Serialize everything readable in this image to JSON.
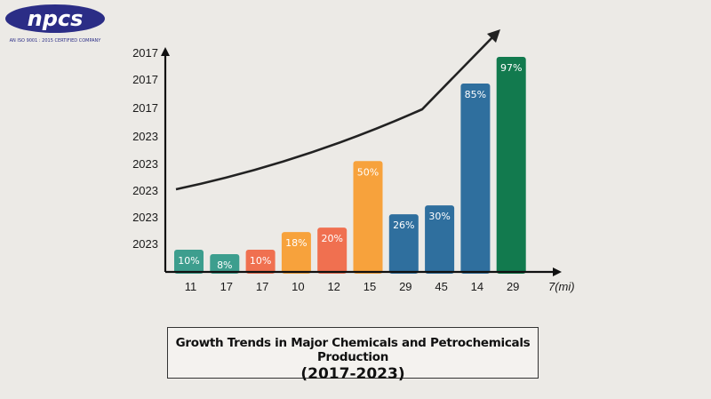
{
  "logo": {
    "brand": "npcs",
    "tagline": "AN ISO 9001 : 2015 CERTIFIED COMPANY",
    "colors": {
      "brand": "#2b2d86",
      "text": "#ffffff"
    }
  },
  "caption": {
    "title_line1": "Growth Trends in Major Chemicals and Petrochemicals Production",
    "title_line2": "(2017-2023)"
  },
  "chart_data": {
    "type": "bar",
    "title": "Growth Trends in Major Chemicals and Petrochemicals Production (2017-2023)",
    "categories": [
      "11",
      "17",
      "17",
      "10",
      "12",
      "15",
      "29",
      "45",
      "14",
      "29"
    ],
    "values": [
      10,
      8,
      10,
      18,
      20,
      50,
      26,
      30,
      85,
      97
    ],
    "data_labels": [
      "10%",
      "8%",
      "10%",
      "18%",
      "20%",
      "50%",
      "26%",
      "30%",
      "85%",
      "97%"
    ],
    "bar_colors": [
      "#3d9e8e",
      "#3d9e8e",
      "#f07050",
      "#f7a23c",
      "#f07050",
      "#f7a23c",
      "#2f6f9e",
      "#2f6f9e",
      "#2f6f9e",
      "#127a4e"
    ],
    "y_tick_labels": [
      "2023",
      "2023",
      "2023",
      "2023",
      "2023",
      "2017",
      "2017",
      "2017"
    ],
    "x_axis_end_label": "7(mi)",
    "grid": false,
    "trend_line": "increasing curve with arrowhead",
    "line_color": "#222222"
  }
}
